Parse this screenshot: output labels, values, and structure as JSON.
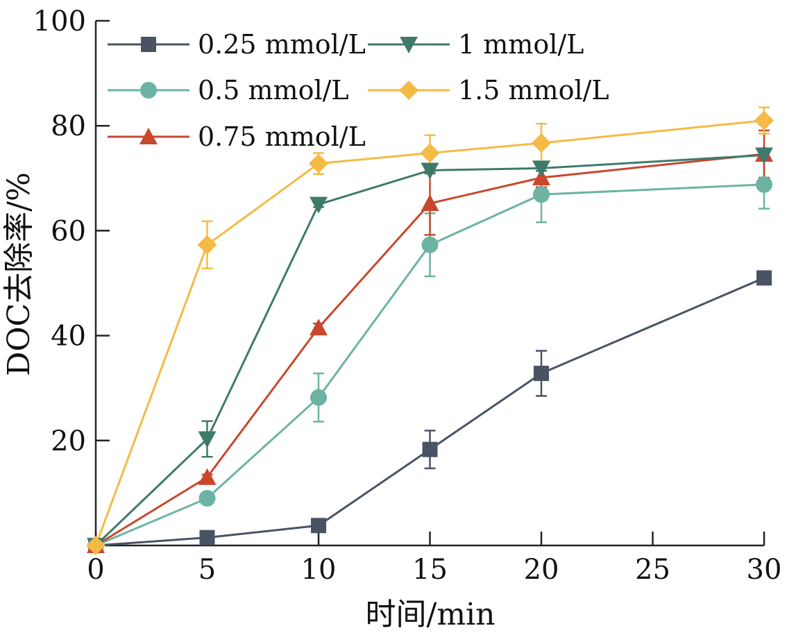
{
  "chart_data": {
    "type": "line",
    "title": "",
    "xlabel": "时间/min",
    "ylabel": "DOC去除率/%",
    "xlim": [
      0,
      30
    ],
    "ylim": [
      0,
      100
    ],
    "x_ticks": [
      0,
      5,
      10,
      15,
      20,
      25,
      30
    ],
    "y_ticks": [
      20,
      40,
      60,
      80,
      100
    ],
    "x_tick_labels": [
      "0",
      "5",
      "10",
      "15",
      "20",
      "25",
      "30"
    ],
    "y_tick_labels": [
      "20",
      "40",
      "60",
      "80",
      "100"
    ],
    "grid": false,
    "legend_position": "top-left",
    "series": [
      {
        "name": "0.25 mmol/L",
        "marker": "square",
        "color": "#4a5363",
        "x": [
          0,
          5,
          10,
          15,
          20,
          30
        ],
        "y": [
          0,
          1.5,
          3.8,
          18.3,
          32.8,
          51
        ],
        "error": [
          0,
          0.5,
          0.5,
          3.6,
          4.3,
          0.8
        ]
      },
      {
        "name": "0.5 mmol/L",
        "marker": "circle",
        "color": "#6db3a3",
        "x": [
          0,
          5,
          10,
          15,
          20,
          30
        ],
        "y": [
          0,
          9,
          28.2,
          57.3,
          66.9,
          68.8
        ],
        "error": [
          0,
          0.8,
          4.6,
          6,
          5.3,
          4.6
        ]
      },
      {
        "name": "0.75 mmol/L",
        "marker": "triangle-up",
        "color": "#c8472d",
        "x": [
          0,
          5,
          10,
          15,
          20,
          30
        ],
        "y": [
          0,
          13,
          41.5,
          65.2,
          70.1,
          74.6
        ],
        "error": [
          0,
          0.5,
          0.8,
          6,
          1.8,
          4.5
        ]
      },
      {
        "name": "1 mmol/L",
        "marker": "triangle-down",
        "color": "#3e7a6b",
        "x": [
          0,
          5,
          10,
          15,
          20,
          30
        ],
        "y": [
          0,
          20.3,
          65,
          71.5,
          71.9,
          74.4
        ],
        "error": [
          0,
          3.4,
          0.5,
          0.6,
          0.5,
          0.6
        ]
      },
      {
        "name": "1.5 mmol/L",
        "marker": "diamond",
        "color": "#f5ba45",
        "x": [
          0,
          5,
          10,
          15,
          20,
          30
        ],
        "y": [
          0,
          57.3,
          72.8,
          74.8,
          76.7,
          81
        ],
        "error": [
          0,
          4.5,
          2,
          3.4,
          3.7,
          2.5
        ]
      }
    ]
  }
}
